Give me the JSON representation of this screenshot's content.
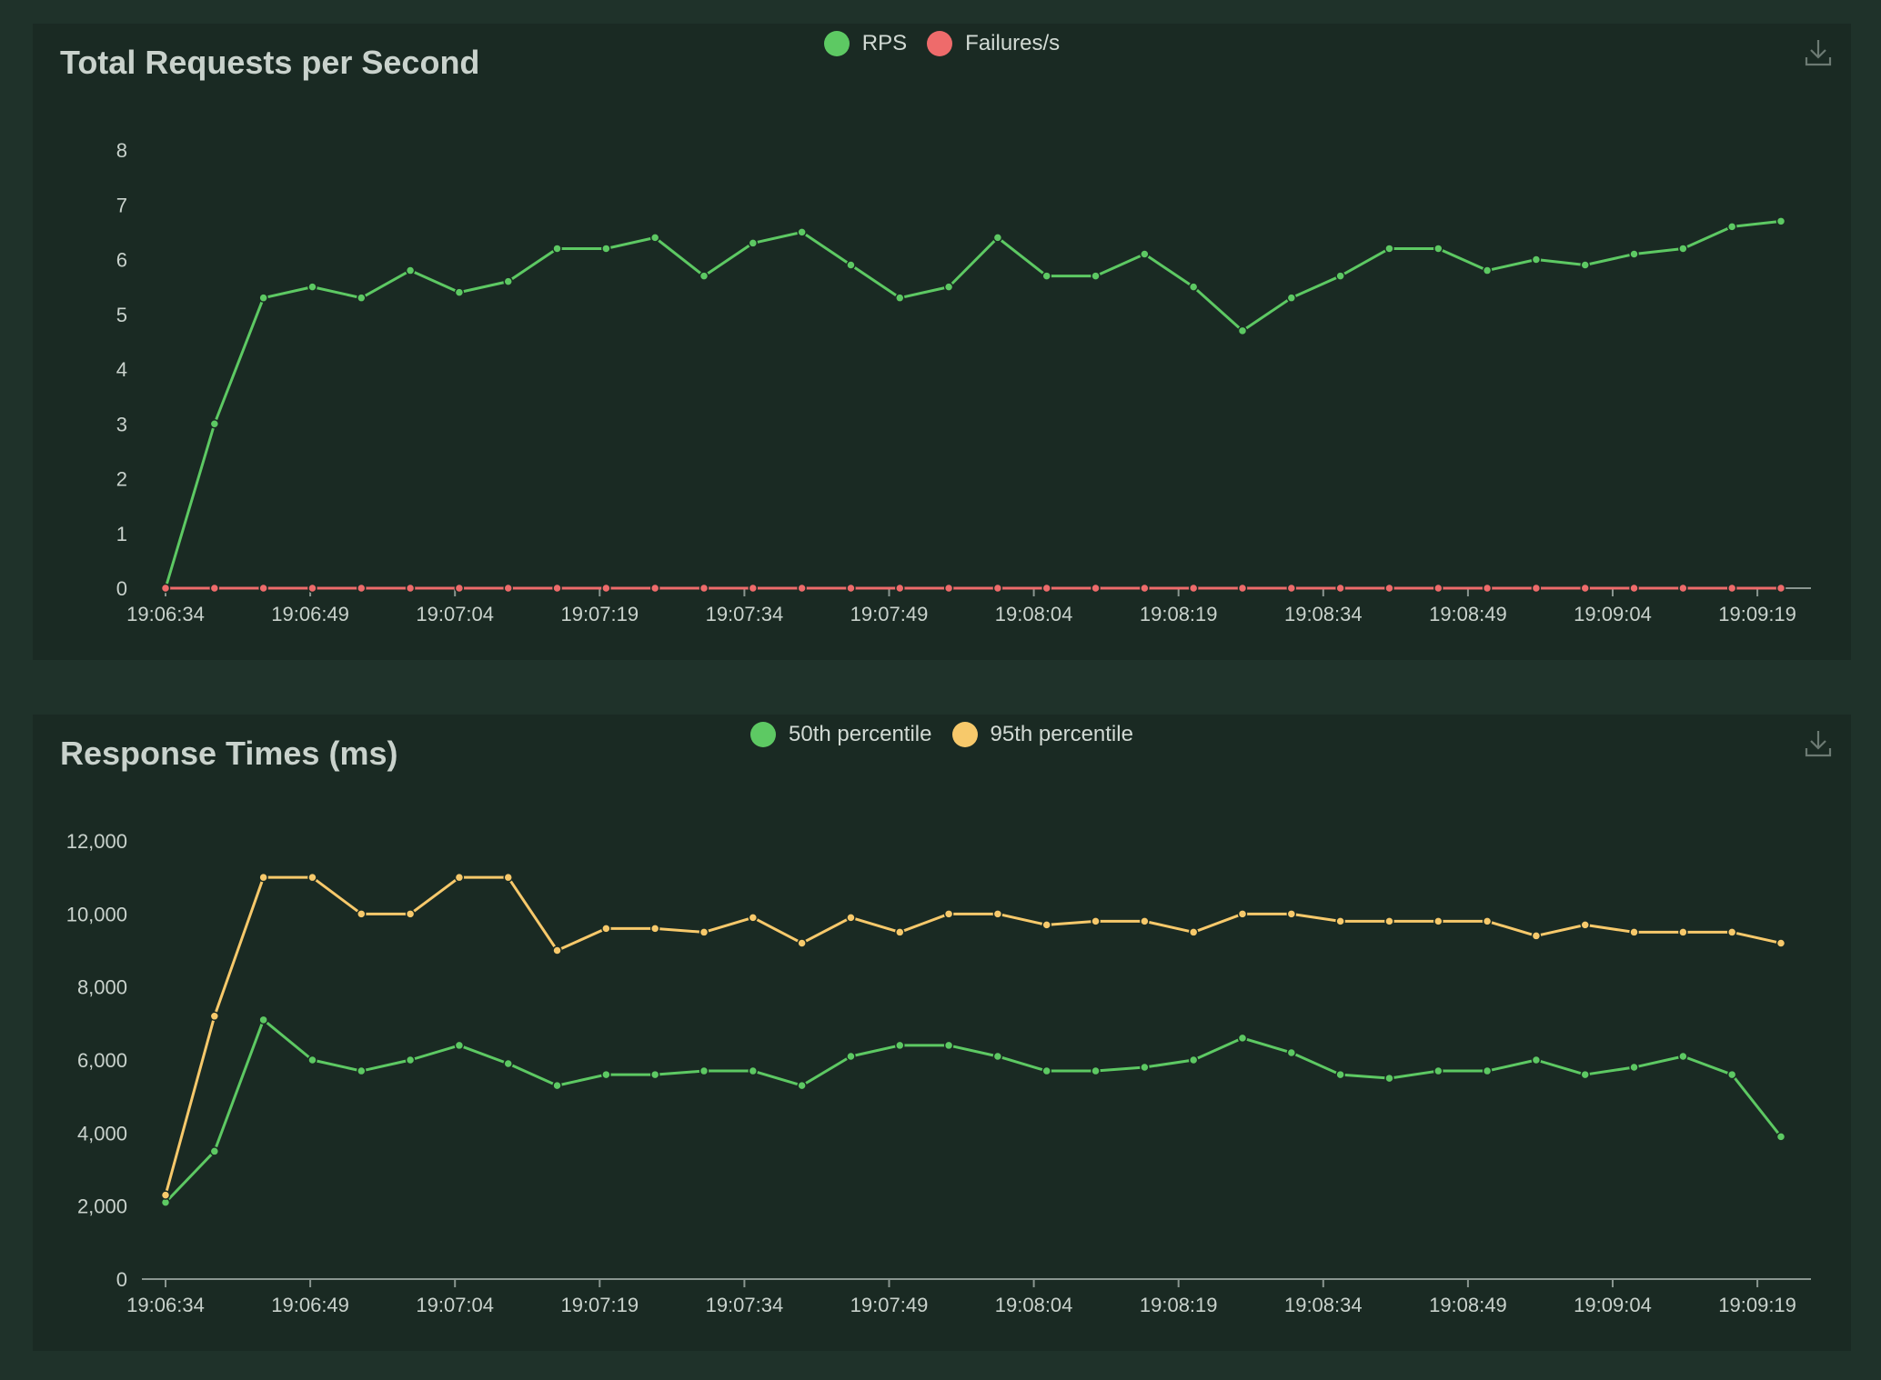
{
  "chart_data": [
    {
      "type": "line",
      "title": "Total Requests per Second",
      "categories": [
        "19:06:34",
        "19:06:39",
        "19:06:44",
        "19:06:49",
        "19:06:54",
        "19:06:59",
        "19:07:04",
        "19:07:09",
        "19:07:14",
        "19:07:19",
        "19:07:24",
        "19:07:29",
        "19:07:34",
        "19:07:39",
        "19:07:44",
        "19:07:49",
        "19:07:54",
        "19:07:59",
        "19:08:04",
        "19:08:09",
        "19:08:14",
        "19:08:19",
        "19:08:24",
        "19:08:29",
        "19:08:34",
        "19:08:39",
        "19:08:44",
        "19:08:49",
        "19:08:54",
        "19:08:59",
        "19:09:04",
        "19:09:09",
        "19:09:14",
        "19:09:19"
      ],
      "tick_labels": [
        "19:06:34",
        "19:06:49",
        "19:07:04",
        "19:07:19",
        "19:07:34",
        "19:07:49",
        "19:08:04",
        "19:08:19",
        "19:08:34",
        "19:08:49",
        "19:09:04",
        "19:09:19"
      ],
      "ylim": [
        0,
        8
      ],
      "yticks": [
        "0",
        "1",
        "2",
        "3",
        "4",
        "5",
        "6",
        "7",
        "8"
      ],
      "grid": false,
      "legend_position": "top-center",
      "series": [
        {
          "name": "RPS",
          "color": "#5dc963",
          "values": [
            0,
            3,
            5.3,
            5.5,
            5.3,
            5.8,
            5.4,
            5.6,
            6.2,
            6.2,
            6.4,
            5.7,
            6.3,
            6.5,
            5.9,
            5.3,
            5.5,
            6.4,
            5.7,
            5.7,
            6.1,
            5.5,
            4.7,
            5.3,
            5.7,
            6.2,
            6.2,
            5.8,
            6.0,
            5.9,
            6.1,
            6.2,
            6.6,
            6.7
          ]
        },
        {
          "name": "Failures/s",
          "color": "#ee6b6b",
          "values": [
            0,
            0,
            0,
            0,
            0,
            0,
            0,
            0,
            0,
            0,
            0,
            0,
            0,
            0,
            0,
            0,
            0,
            0,
            0,
            0,
            0,
            0,
            0,
            0,
            0,
            0,
            0,
            0,
            0,
            0,
            0,
            0,
            0,
            0
          ]
        }
      ]
    },
    {
      "type": "line",
      "title": "Response Times (ms)",
      "categories": [
        "19:06:34",
        "19:06:39",
        "19:06:44",
        "19:06:49",
        "19:06:54",
        "19:06:59",
        "19:07:04",
        "19:07:09",
        "19:07:14",
        "19:07:19",
        "19:07:24",
        "19:07:29",
        "19:07:34",
        "19:07:39",
        "19:07:44",
        "19:07:49",
        "19:07:54",
        "19:07:59",
        "19:08:04",
        "19:08:09",
        "19:08:14",
        "19:08:19",
        "19:08:24",
        "19:08:29",
        "19:08:34",
        "19:08:39",
        "19:08:44",
        "19:08:49",
        "19:08:54",
        "19:08:59",
        "19:09:04",
        "19:09:09",
        "19:09:14",
        "19:09:19"
      ],
      "tick_labels": [
        "19:06:34",
        "19:06:49",
        "19:07:04",
        "19:07:19",
        "19:07:34",
        "19:07:49",
        "19:08:04",
        "19:08:19",
        "19:08:34",
        "19:08:49",
        "19:09:04",
        "19:09:19"
      ],
      "ylim": [
        0,
        12000
      ],
      "yticks": [
        "0",
        "2,000",
        "4,000",
        "6,000",
        "8,000",
        "10,000",
        "12,000"
      ],
      "grid": false,
      "legend_position": "top-center",
      "series": [
        {
          "name": "50th percentile",
          "color": "#5dc963",
          "values": [
            2100,
            3500,
            7100,
            6000,
            5700,
            6000,
            6400,
            5900,
            5300,
            5600,
            5600,
            5700,
            5700,
            5300,
            6100,
            6400,
            6400,
            6100,
            5700,
            5700,
            5800,
            6000,
            6600,
            6200,
            5600,
            5500,
            5700,
            5700,
            6000,
            5600,
            5800,
            6100,
            5600,
            3900
          ]
        },
        {
          "name": "95th percentile",
          "color": "#f7c96b",
          "values": [
            2300,
            7200,
            11000,
            11000,
            10000,
            10000,
            11000,
            11000,
            9000,
            9600,
            9600,
            9500,
            9900,
            9200,
            9900,
            9500,
            10000,
            10000,
            9700,
            9800,
            9800,
            9500,
            10000,
            10000,
            9800,
            9800,
            9800,
            9800,
            9400,
            9700,
            9500,
            9500,
            9500,
            9200
          ]
        }
      ]
    }
  ],
  "ui": {
    "download_icon": "download-icon",
    "axis_color": "#8a9690"
  }
}
